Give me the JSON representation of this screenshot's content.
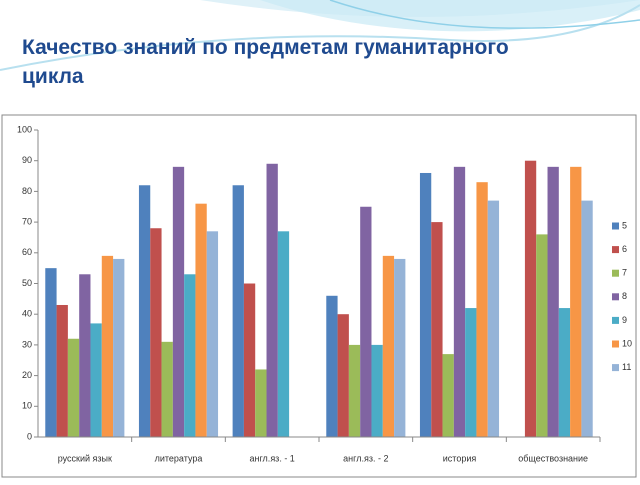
{
  "chart_data": {
    "type": "bar",
    "title": "Качество знаний по предметам гуманитарного цикла",
    "categories": [
      "русский язык",
      "литература",
      "англ.яз. - 1",
      "англ.яз. - 2",
      "история",
      "обществознание"
    ],
    "series": [
      {
        "name": "5",
        "color": "#4f81bd",
        "values": [
          55,
          82,
          82,
          46,
          86,
          null
        ]
      },
      {
        "name": "6",
        "color": "#c0504d",
        "values": [
          43,
          68,
          50,
          40,
          70,
          90
        ]
      },
      {
        "name": "7",
        "color": "#9bbb59",
        "values": [
          32,
          31,
          22,
          30,
          27,
          66
        ]
      },
      {
        "name": "8",
        "color": "#8064a2",
        "values": [
          53,
          88,
          89,
          75,
          88,
          88
        ]
      },
      {
        "name": "9",
        "color": "#4bacc6",
        "values": [
          37,
          53,
          67,
          30,
          42,
          42
        ]
      },
      {
        "name": "10",
        "color": "#f79646",
        "values": [
          59,
          76,
          null,
          59,
          83,
          88
        ]
      },
      {
        "name": "11",
        "color": "#95b3d7",
        "values": [
          58,
          67,
          null,
          58,
          77,
          77
        ]
      }
    ],
    "ylim": [
      0,
      100
    ],
    "yticks": [
      0,
      10,
      20,
      30,
      40,
      50,
      60,
      70,
      80,
      90,
      100
    ],
    "grid": false,
    "legend": "right"
  }
}
